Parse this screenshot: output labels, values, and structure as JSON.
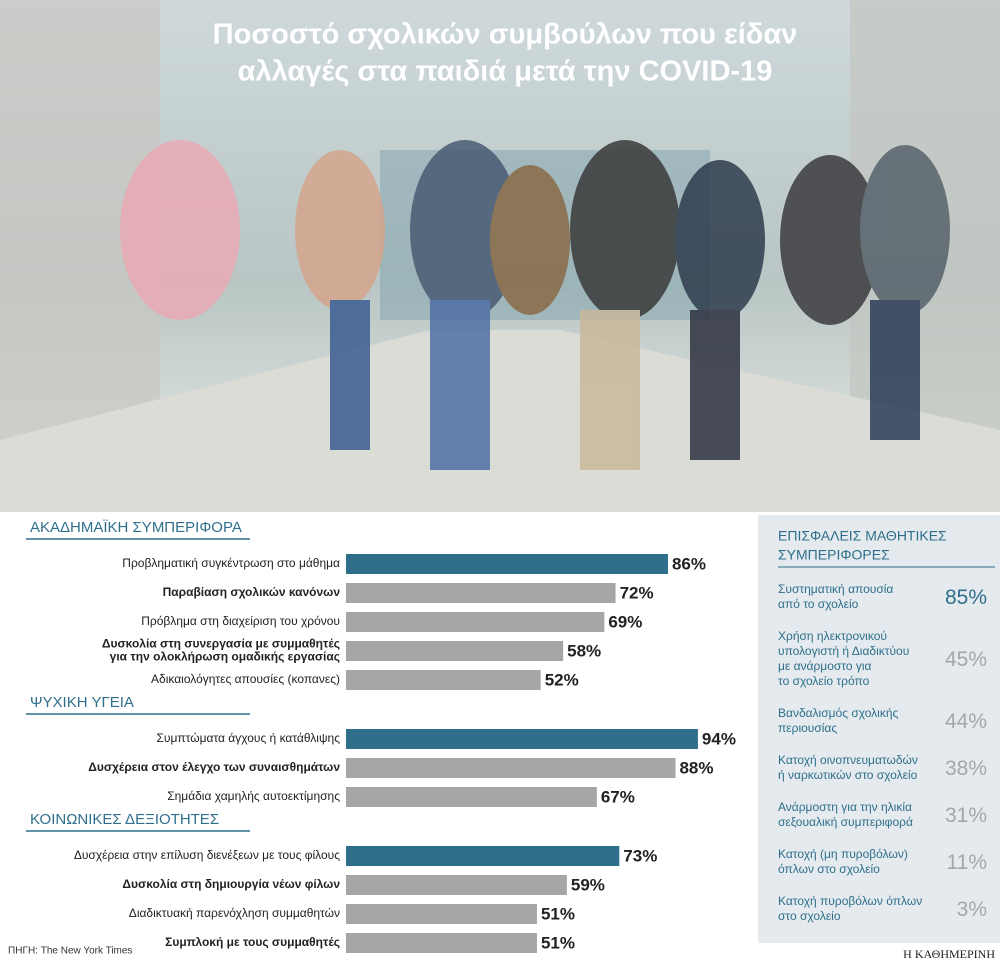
{
  "chart_data": [
    {
      "type": "bar",
      "title": [
        "Ποσοστό σχολικών συμβούλων που είδαν",
        "αλλαγές στα παιδιά μετά την COVID-19"
      ],
      "groups": [
        {
          "title": "ΑΚΑΔΗΜΑΪΚΗ ΣΥΜΠΕΡΙΦΟΡΑ",
          "categories": [
            [
              "Προβληματική συγκέντρωση στο μάθημα"
            ],
            [
              "Παραβίαση σχολικών κανόνων"
            ],
            [
              "Πρόβλημα στη διαχείριση του χρόνου"
            ],
            [
              "Δυσκολία στη συνεργασία με συμμαθητές",
              "για την ολοκλήρωση ομαδικής εργασίας"
            ],
            [
              "Αδικαιολόγητες απουσίες (κοπανες)"
            ]
          ],
          "values": [
            86,
            72,
            69,
            58,
            52
          ],
          "value_labels": [
            "86%",
            "72%",
            "69%",
            "58%",
            "52%"
          ],
          "colors": [
            "#2f6f8c",
            "#a6a6a6",
            "#a6a6a6",
            "#a6a6a6",
            "#a6a6a6"
          ],
          "bold": [
            false,
            true,
            false,
            true,
            false
          ]
        },
        {
          "title": "ΨΥΧΙΚΗ ΥΓΕΙΑ",
          "categories": [
            [
              "Συμπτώματα άγχους ή κατάθλιψης"
            ],
            [
              "Δυσχέρεια στον έλεγχο των συναισθημάτων"
            ],
            [
              "Σημάδια χαμηλής αυτοεκτίμησης"
            ]
          ],
          "values": [
            94,
            88,
            67
          ],
          "value_labels": [
            "94%",
            "88%",
            "67%"
          ],
          "colors": [
            "#2f6f8c",
            "#a6a6a6",
            "#a6a6a6"
          ],
          "bold": [
            false,
            true,
            false
          ]
        },
        {
          "title": "ΚΟΙΝΩΝΙΚΕΣ ΔΕΞΙΟΤΗΤΕΣ",
          "categories": [
            [
              "Δυσχέρεια στην επίλυση διενέξεων με τους φίλους"
            ],
            [
              "Δυσκολία στη δημιουργία νέων φίλων"
            ],
            [
              "Διαδικτυακή παρενόχληση συμμαθητών"
            ],
            [
              "Συμπλοκή με τους συμμαθητές"
            ]
          ],
          "values": [
            73,
            59,
            51,
            51
          ],
          "value_labels": [
            "73%",
            "59%",
            "51%",
            "51%"
          ],
          "colors": [
            "#2f6f8c",
            "#a6a6a6",
            "#a6a6a6",
            "#a6a6a6"
          ],
          "bold": [
            false,
            true,
            false,
            true
          ]
        }
      ],
      "source": "ΠΗΓΗ: The New York Times",
      "credit": "Η ΚΑΘΗΜΕΡΙΝΗ"
    },
    {
      "type": "list",
      "title": [
        "ΕΠΙΣΦΑΛΕΙΣ ΜΑΘΗΤΙΚΕΣ",
        "ΣΥΜΠΕΡΙΦΟΡΕΣ"
      ],
      "categories": [
        [
          "Συστηματική απουσία",
          "από το σχολείο"
        ],
        [
          "Χρήση ηλεκτρονικού",
          "υπολογιστή ή Διαδικτύου",
          "με ανάρμοστο για",
          "το σχολείο τρόπο"
        ],
        [
          "Βανδαλισμός σχολικής",
          "περιουσίας"
        ],
        [
          "Κατοχή οινοπνευματωδών",
          "ή ναρκωτικών στο σχολείο"
        ],
        [
          "Ανάρμοστη για την ηλικία",
          "σεξουαλική συμπεριφορά"
        ],
        [
          "Κατοχή (μη πυροβόλων)",
          "όπλων στο σχολείο"
        ],
        [
          "Κατοχή πυροβόλων όπλων",
          "στο σχολείο"
        ]
      ],
      "values": [
        85,
        45,
        44,
        38,
        31,
        11,
        3
      ],
      "value_labels": [
        "85%",
        "45%",
        "44%",
        "38%",
        "31%",
        "11%",
        "3%"
      ],
      "colors": [
        "#2f6f8c",
        "#a6a6a6",
        "#a6a6a6",
        "#a6a6a6",
        "#a6a6a6",
        "#a6a6a6",
        "#a6a6a6"
      ]
    }
  ]
}
